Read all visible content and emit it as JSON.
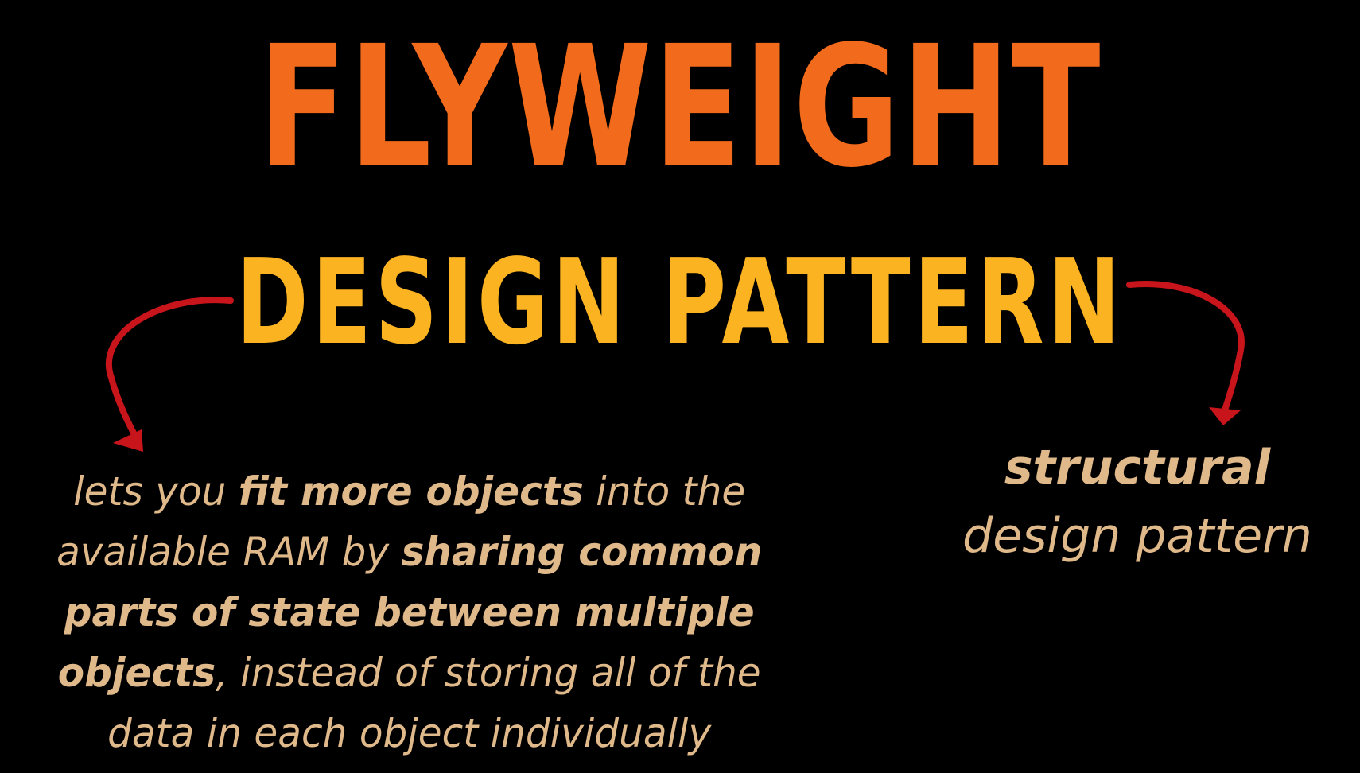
{
  "colors": {
    "background": "#000000",
    "title_main": "#F26A1B",
    "title_sub": "#FBB322",
    "description": "#E0B98A",
    "arrow": "#C8141B"
  },
  "title": {
    "main": "FLYWEIGHT",
    "sub": "DESIGN PATTERN"
  },
  "left_description": {
    "line1": {
      "a": "lets you ",
      "b": "fit more objects",
      "c": " into the"
    },
    "line2": {
      "a": "available RAM by ",
      "b": "sharing common"
    },
    "line3": {
      "b": "parts of state between multiple"
    },
    "line4": {
      "b": "objects",
      "c": ", instead of storing all of the"
    },
    "line5": {
      "a": "data in each object individually"
    }
  },
  "right_description": {
    "bold": "structural",
    "normal": "design pattern"
  },
  "arrows": {
    "left_icon": "curved-arrow-down-left-icon",
    "right_icon": "curved-arrow-down-right-icon"
  }
}
